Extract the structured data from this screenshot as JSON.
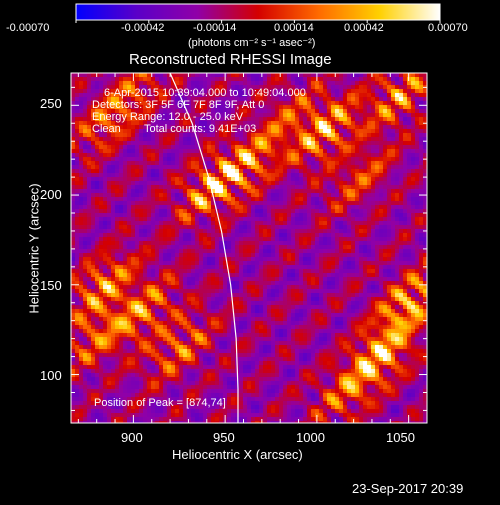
{
  "colorbar": {
    "ticks": [
      "-0.00070",
      "-0.00042",
      "-0.00014",
      "0.00014",
      "0.00042",
      "0.00070"
    ],
    "units": "(photons cm⁻² s⁻¹ asec⁻²)",
    "colors": [
      "#0000ff",
      "#5a00c8",
      "#9000a8",
      "#d40000",
      "#ff6a00",
      "#ffd000",
      "#ffffff"
    ]
  },
  "chart_data": {
    "type": "heatmap",
    "title": "Reconstructed RHESSI Image",
    "xlabel": "Heliocentric X (arcsec)",
    "ylabel": "Heliocentric Y (arcsec)",
    "xlim": [
      866,
      1060
    ],
    "ylim": [
      73,
      268
    ],
    "x_ticks": [
      900,
      950,
      1000,
      1050
    ],
    "y_ticks": [
      100,
      150,
      200,
      250
    ],
    "annotations": [
      "6-Apr-2015 10:39:04.000 to 10:49:04.000",
      "Detectors: 3F 5F 6F 7F 8F 9F, Att 0",
      "Energy Range: 12.0 - 25.0 keV",
      "Clean",
      "Total counts: 9.41E+03"
    ],
    "peak_label": "Position of Peak = [874,74]",
    "peak": [
      874,
      74
    ],
    "limb_curve": [
      [
        920,
        268
      ],
      [
        932,
        240
      ],
      [
        941,
        210
      ],
      [
        948,
        180
      ],
      [
        953,
        150
      ],
      [
        956,
        120
      ],
      [
        957,
        92
      ],
      [
        957,
        73
      ]
    ],
    "bright_sources": [
      {
        "x": 1005,
        "y": 236,
        "amp": 1.0
      },
      {
        "x": 1045,
        "y": 255,
        "amp": 0.8
      },
      {
        "x": 944,
        "y": 205,
        "amp": 1.0
      },
      {
        "x": 964,
        "y": 219,
        "amp": 0.7
      },
      {
        "x": 1024,
        "y": 210,
        "amp": 0.6
      },
      {
        "x": 884,
        "y": 150,
        "amp": 0.9
      },
      {
        "x": 905,
        "y": 135,
        "amp": 0.8
      },
      {
        "x": 925,
        "y": 115,
        "amp": 0.7
      },
      {
        "x": 880,
        "y": 120,
        "amp": 0.6
      },
      {
        "x": 1050,
        "y": 140,
        "amp": 1.0
      },
      {
        "x": 1036,
        "y": 112,
        "amp": 1.0
      },
      {
        "x": 1018,
        "y": 92,
        "amp": 0.7
      },
      {
        "x": 885,
        "y": 240,
        "amp": 0.6
      },
      {
        "x": 900,
        "y": 258,
        "amp": 0.5
      },
      {
        "x": 985,
        "y": 245,
        "amp": 0.5
      }
    ]
  },
  "timestamp": "23-Sep-2017 20:39"
}
